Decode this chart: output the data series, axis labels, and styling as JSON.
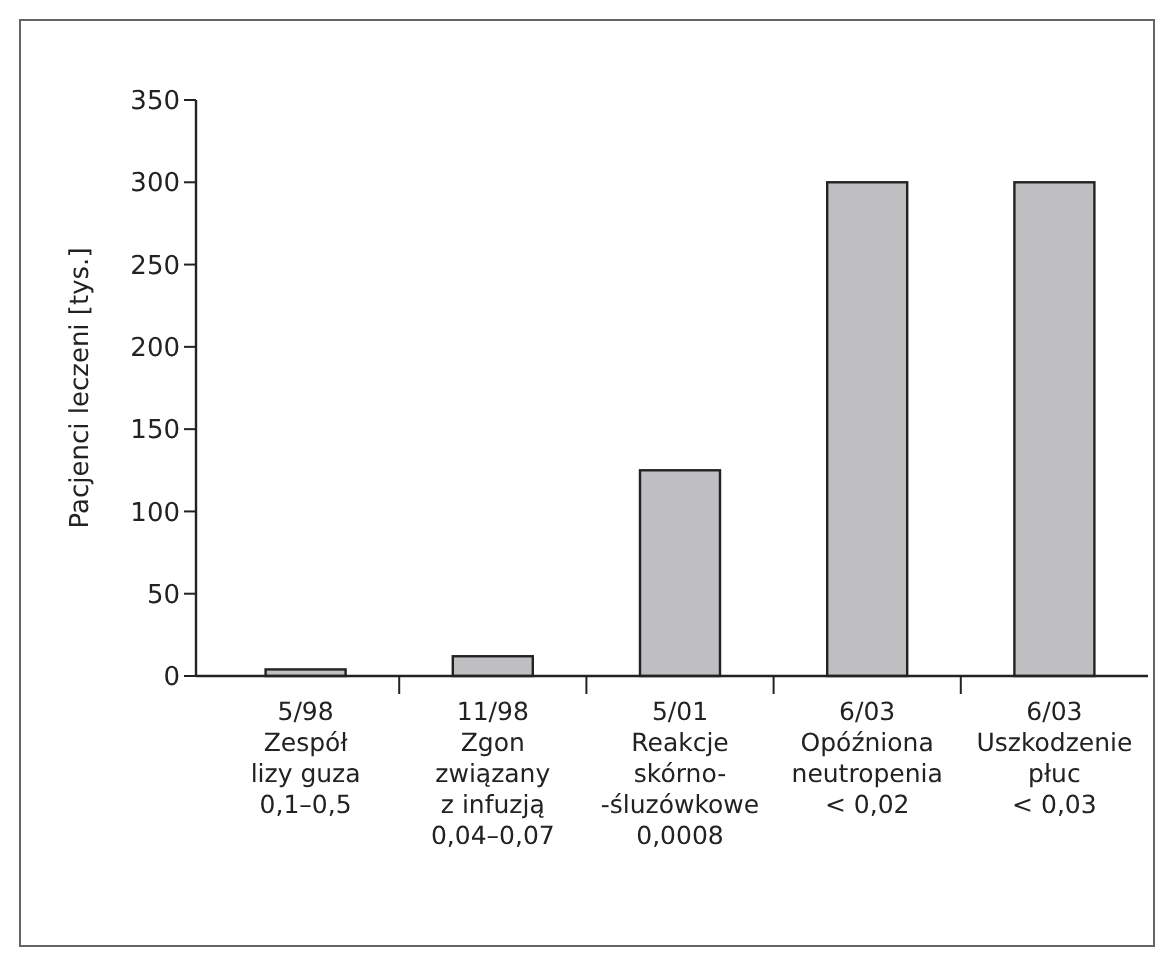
{
  "chart_data": {
    "type": "bar",
    "ylabel": "Pacjenci leczeni  [tys.]",
    "categories": [
      "5/98\nZespół\nlizy guza\n0,1–0,5",
      "11/98\nZgon\nzwiązany\nz infuzją\n0,04–0,07",
      "5/01\nReakcje\nskórno-\n-śluzówkowe\n0,0008",
      "6/03\nOpóźniona\nneutropenia\n< 0,02",
      "6/03\nUszkodzenie\npłuc\n< 0,03"
    ],
    "values": [
      4,
      12,
      125,
      300,
      300
    ],
    "color": "#bfbfc1",
    "ylim": [
      0,
      350
    ],
    "yticks": [
      0,
      50,
      100,
      150,
      200,
      250,
      300,
      350
    ],
    "grid": false
  }
}
